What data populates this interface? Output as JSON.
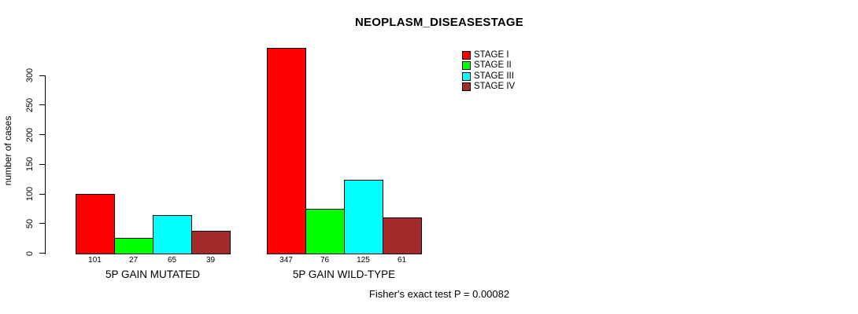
{
  "chart_data": {
    "type": "bar",
    "title": "NEOPLASM_DISEASESTAGE",
    "categories": [
      "5P GAIN MUTATED",
      "5P GAIN WILD-TYPE"
    ],
    "series": [
      {
        "name": "STAGE I",
        "color": "#FF0000",
        "values": [
          101,
          347
        ]
      },
      {
        "name": "STAGE II",
        "color": "#00FF00",
        "values": [
          27,
          76
        ]
      },
      {
        "name": "STAGE III",
        "color": "#00FFFF",
        "values": [
          65,
          125
        ]
      },
      {
        "name": "STAGE IV",
        "color": "#A52A2A",
        "values": [
          39,
          61
        ]
      }
    ],
    "xlabel": "",
    "ylabel": "number of cases",
    "yticks": [
      0,
      50,
      100,
      150,
      200,
      250,
      300
    ],
    "ylim": [
      0,
      347
    ],
    "grid": false,
    "legend_position": "top-right",
    "bar_value_labels": true,
    "bar_border_color": "#000000",
    "annotation": "Fisher's exact test P = 0.00082"
  }
}
